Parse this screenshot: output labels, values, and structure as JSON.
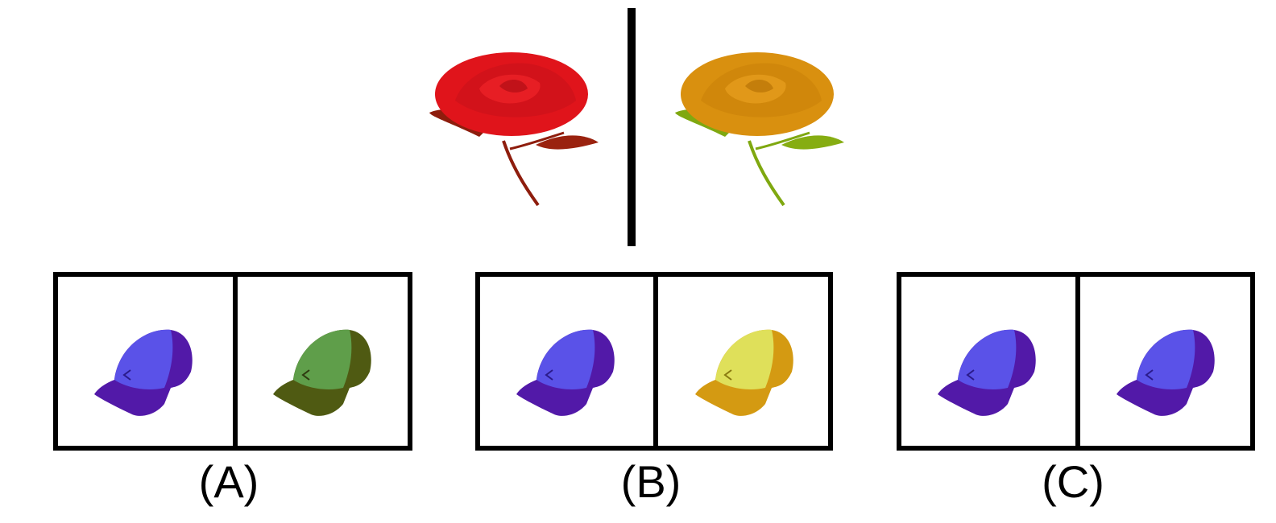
{
  "exemplar": {
    "left_image": "red-rose",
    "right_image": "orange-rose",
    "colors": {
      "left_bloom": "#e0141b",
      "left_leaf": "#8e1d0d",
      "right_bloom": "#d9900f",
      "right_leaf": "#7fa810"
    }
  },
  "options": [
    {
      "label": "(A)",
      "left_cap": {
        "crown": "#5a52e8",
        "side": "#5219a8"
      },
      "right_cap": {
        "crown": "#5f9e4a",
        "side": "#4f5a12"
      }
    },
    {
      "label": "(B)",
      "left_cap": {
        "crown": "#5a52e8",
        "side": "#5219a8"
      },
      "right_cap": {
        "crown": "#dfe05a",
        "side": "#d49a12"
      }
    },
    {
      "label": "(C)",
      "left_cap": {
        "crown": "#5a52e8",
        "side": "#5219a8"
      },
      "right_cap": {
        "crown": "#5a52e8",
        "side": "#5219a8"
      }
    }
  ]
}
